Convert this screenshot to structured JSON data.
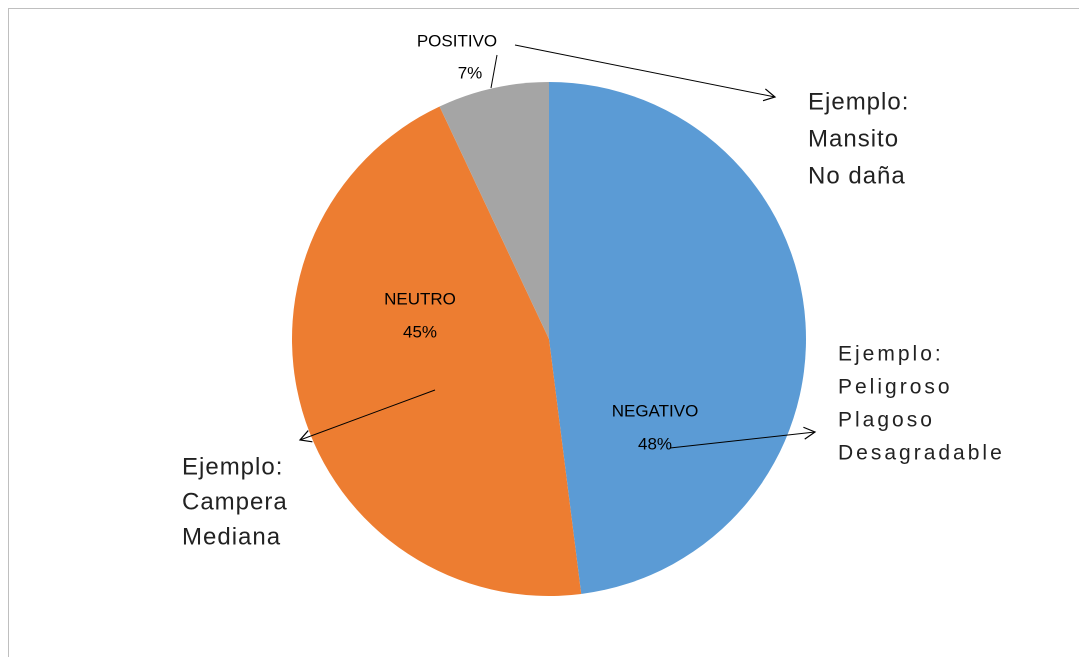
{
  "chart_data": {
    "type": "pie",
    "categories": [
      "NEGATIVO",
      "NEUTRO",
      "POSITIVO"
    ],
    "values": [
      48,
      45,
      7
    ],
    "value_labels": [
      "48%",
      "45%",
      "7%"
    ],
    "colors": [
      "#5b9bd5",
      "#ed7d31",
      "#a5a5a5"
    ],
    "annotations": [
      {
        "lines": [
          "Ejemplo:",
          "Peligroso",
          "Plagoso",
          "Desagradable"
        ]
      },
      {
        "lines": [
          "Ejemplo:",
          "Campera",
          "Mediana"
        ]
      },
      {
        "lines": [
          "Ejemplo:",
          "Mansito",
          "No daña"
        ]
      }
    ]
  }
}
